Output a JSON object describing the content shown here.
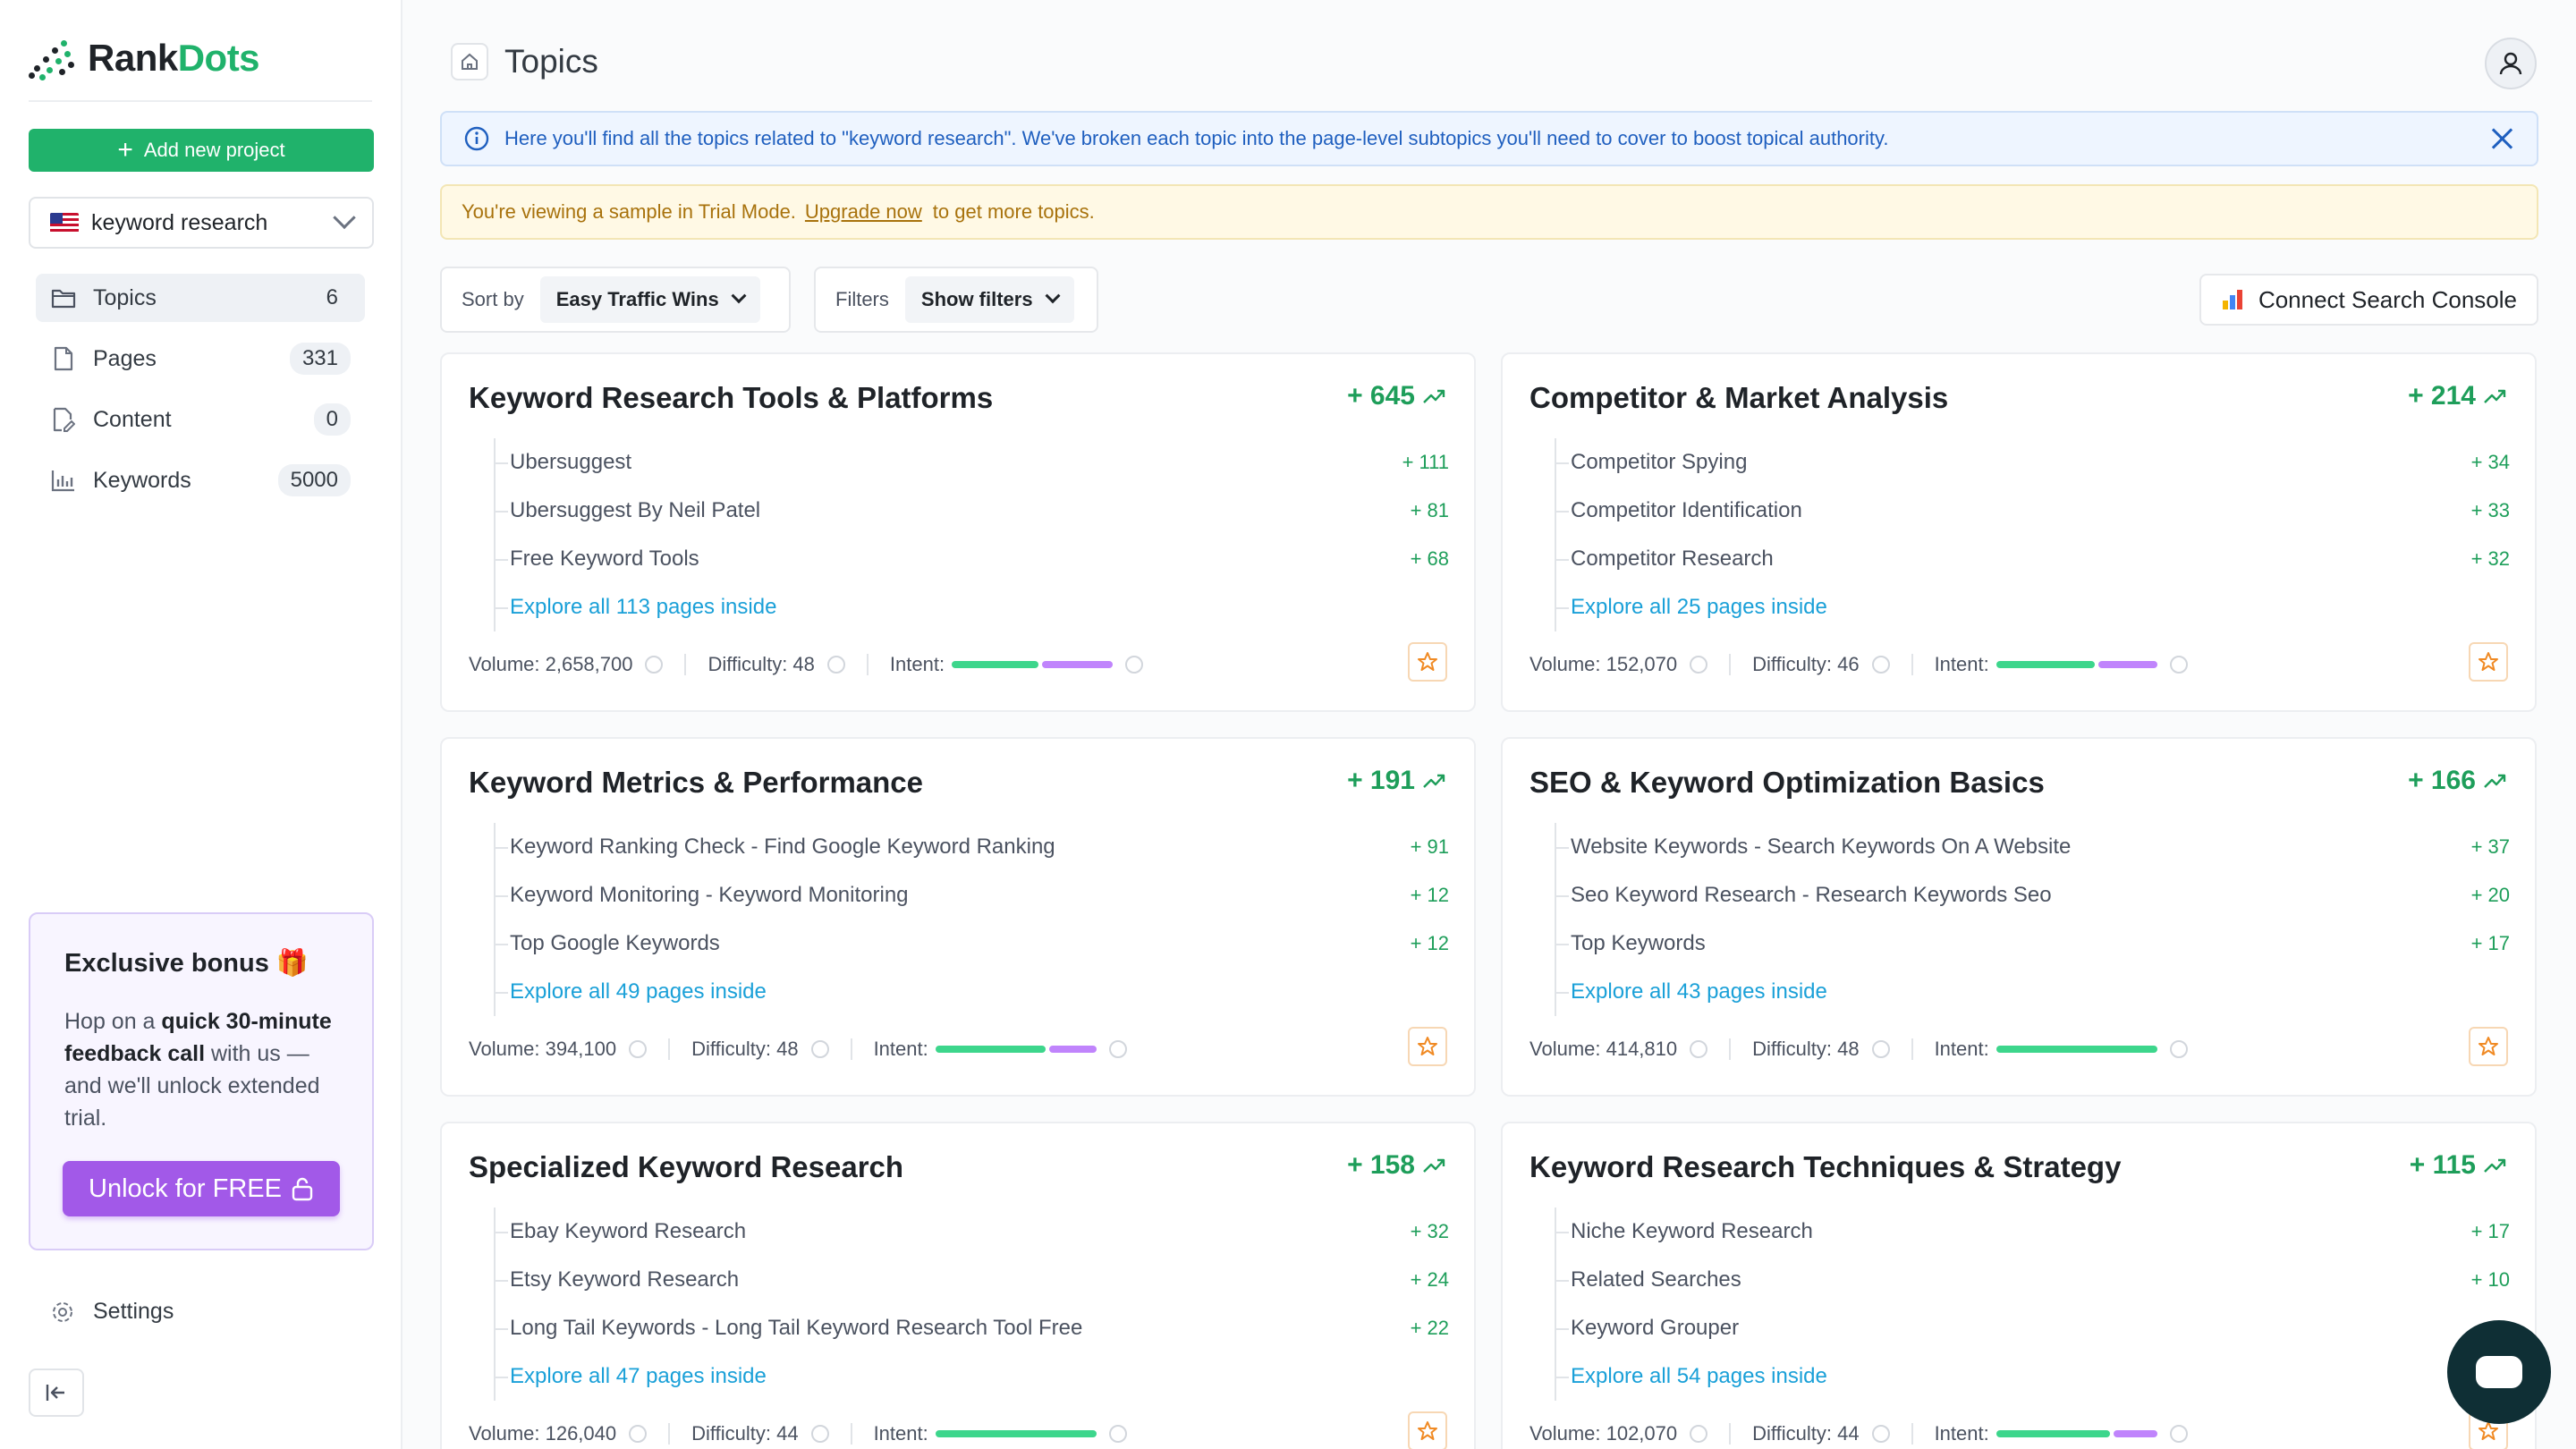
{
  "app": {
    "logo_part1": "Rank",
    "logo_part2": "Dots",
    "brand_color": "#20b26b"
  },
  "sidebar": {
    "add_project_label": "Add new project",
    "project": {
      "flag": "us-flag-icon",
      "name": "keyword research"
    },
    "nav": [
      {
        "label": "Topics",
        "count": "6",
        "icon": "folder-icon",
        "active": true
      },
      {
        "label": "Pages",
        "count": "331",
        "icon": "file-icon"
      },
      {
        "label": "Content",
        "count": "0",
        "icon": "edit-file-icon"
      },
      {
        "label": "Keywords",
        "count": "5000",
        "icon": "bar-chart-icon"
      }
    ],
    "bonus": {
      "title": "Exclusive bonus",
      "emoji": "🎁",
      "text_pre": "Hop on a ",
      "text_bold": "quick 30-minute feedback call",
      "text_post": " with us — and we'll unlock extended trial.",
      "button": "Unlock for FREE"
    },
    "settings_label": "Settings"
  },
  "header": {
    "title": "Topics"
  },
  "info": {
    "text": "Here you'll find all the topics related to \"keyword research\". We've broken each topic into the page-level subtopics you'll need to cover to boost topical authority."
  },
  "trial": {
    "pre": "You're viewing a sample in Trial Mode.",
    "link": "Upgrade now",
    "post": "to get more topics."
  },
  "controls": {
    "sort_label": "Sort by",
    "sort_value": "Easy Traffic Wins",
    "filters_label": "Filters",
    "filters_value": "Show filters",
    "gsc_button": "Connect Search Console"
  },
  "cards": [
    {
      "title": "Keyword Research Tools & Platforms",
      "total": "+ 645",
      "subs": [
        [
          "Ubersuggest",
          "+ 111"
        ],
        [
          "Ubersuggest By Neil Patel",
          "+ 81"
        ],
        [
          "Free Keyword Tools",
          "+ 68"
        ]
      ],
      "explore": "Explore all 113 pages inside",
      "volume": "Volume: 2,658,700",
      "difficulty": "Difficulty: 48",
      "intent_label": "Intent:",
      "intent": [
        0.55,
        0.45
      ]
    },
    {
      "title": "Competitor & Market Analysis",
      "total": "+ 214",
      "subs": [
        [
          "Competitor Spying",
          "+ 34"
        ],
        [
          "Competitor Identification",
          "+ 33"
        ],
        [
          "Competitor Research",
          "+ 32"
        ]
      ],
      "explore": "Explore all 25 pages inside",
      "volume": "Volume: 152,070",
      "difficulty": "Difficulty: 46",
      "intent_label": "Intent:",
      "intent": [
        0.63,
        0.37
      ]
    },
    {
      "title": "Keyword Metrics & Performance",
      "total": "+ 191",
      "subs": [
        [
          "Keyword Ranking Check - Find Google Keyword Ranking",
          "+ 91"
        ],
        [
          "Keyword Monitoring - Keyword Monitoring",
          "+ 12"
        ],
        [
          "Top Google Keywords",
          "+ 12"
        ]
      ],
      "explore": "Explore all 49 pages inside",
      "volume": "Volume: 394,100",
      "difficulty": "Difficulty: 48",
      "intent_label": "Intent:",
      "intent": [
        0.7,
        0.3
      ]
    },
    {
      "title": "SEO & Keyword Optimization Basics",
      "total": "+ 166",
      "subs": [
        [
          "Website Keywords - Search Keywords On A Website",
          "+ 37"
        ],
        [
          "Seo Keyword Research - Research Keywords Seo",
          "+ 20"
        ],
        [
          "Top Keywords",
          "+ 17"
        ]
      ],
      "explore": "Explore all 43 pages inside",
      "volume": "Volume: 414,810",
      "difficulty": "Difficulty: 48",
      "intent_label": "Intent:",
      "intent": [
        1.0,
        0
      ]
    },
    {
      "title": "Specialized Keyword Research",
      "total": "+ 158",
      "subs": [
        [
          "Ebay Keyword Research",
          "+ 32"
        ],
        [
          "Etsy Keyword Research",
          "+ 24"
        ],
        [
          "Long Tail Keywords - Long Tail Keyword Research Tool Free",
          "+ 22"
        ]
      ],
      "explore": "Explore all 47 pages inside",
      "volume": "Volume: 126,040",
      "difficulty": "Difficulty: 44",
      "intent_label": "Intent:",
      "intent": [
        1.0,
        0
      ]
    },
    {
      "title": "Keyword Research Techniques & Strategy",
      "total": "+ 115",
      "subs": [
        [
          "Niche Keyword Research",
          "+ 17"
        ],
        [
          "Related Searches",
          "+ 10"
        ],
        [
          "Keyword Grouper",
          ""
        ]
      ],
      "explore": "Explore all 54 pages inside",
      "volume": "Volume: 102,070",
      "difficulty": "Difficulty: 44",
      "intent_label": "Intent:",
      "intent": [
        0.72,
        0.28
      ]
    }
  ]
}
